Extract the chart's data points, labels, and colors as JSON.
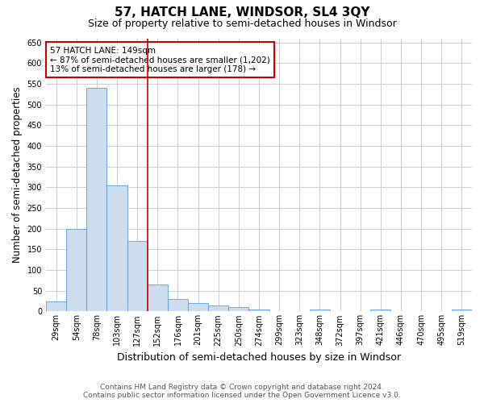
{
  "title": "57, HATCH LANE, WINDSOR, SL4 3QY",
  "subtitle": "Size of property relative to semi-detached houses in Windsor",
  "xlabel": "Distribution of semi-detached houses by size in Windsor",
  "ylabel": "Number of semi-detached properties",
  "bin_labels": [
    "29sqm",
    "54sqm",
    "78sqm",
    "103sqm",
    "127sqm",
    "152sqm",
    "176sqm",
    "201sqm",
    "225sqm",
    "250sqm",
    "274sqm",
    "299sqm",
    "323sqm",
    "348sqm",
    "372sqm",
    "397sqm",
    "421sqm",
    "446sqm",
    "470sqm",
    "495sqm",
    "519sqm"
  ],
  "bar_values": [
    25,
    200,
    540,
    305,
    170,
    65,
    30,
    20,
    15,
    10,
    5,
    0,
    0,
    5,
    0,
    0,
    5,
    0,
    0,
    0,
    5
  ],
  "bar_color": "#ccdded",
  "bar_edge_color": "#5b9bd5",
  "ylim": [
    0,
    660
  ],
  "yticks": [
    0,
    50,
    100,
    150,
    200,
    250,
    300,
    350,
    400,
    450,
    500,
    550,
    600,
    650
  ],
  "vline_index": 5,
  "property_line_label": "57 HATCH LANE: 149sqm",
  "annotation_line1": "← 87% of semi-detached houses are smaller (1,202)",
  "annotation_line2": "13% of semi-detached houses are larger (178) →",
  "annotation_box_color": "#cc0000",
  "vline_color": "#cc0000",
  "grid_color": "#c8c8c8",
  "bg_color": "#ffffff",
  "footer1": "Contains HM Land Registry data © Crown copyright and database right 2024.",
  "footer2": "Contains public sector information licensed under the Open Government Licence v3.0.",
  "title_fontsize": 11,
  "subtitle_fontsize": 9,
  "xlabel_fontsize": 9,
  "ylabel_fontsize": 8.5,
  "tick_fontsize": 7,
  "annotation_fontsize": 7.5,
  "footer_fontsize": 6.5
}
